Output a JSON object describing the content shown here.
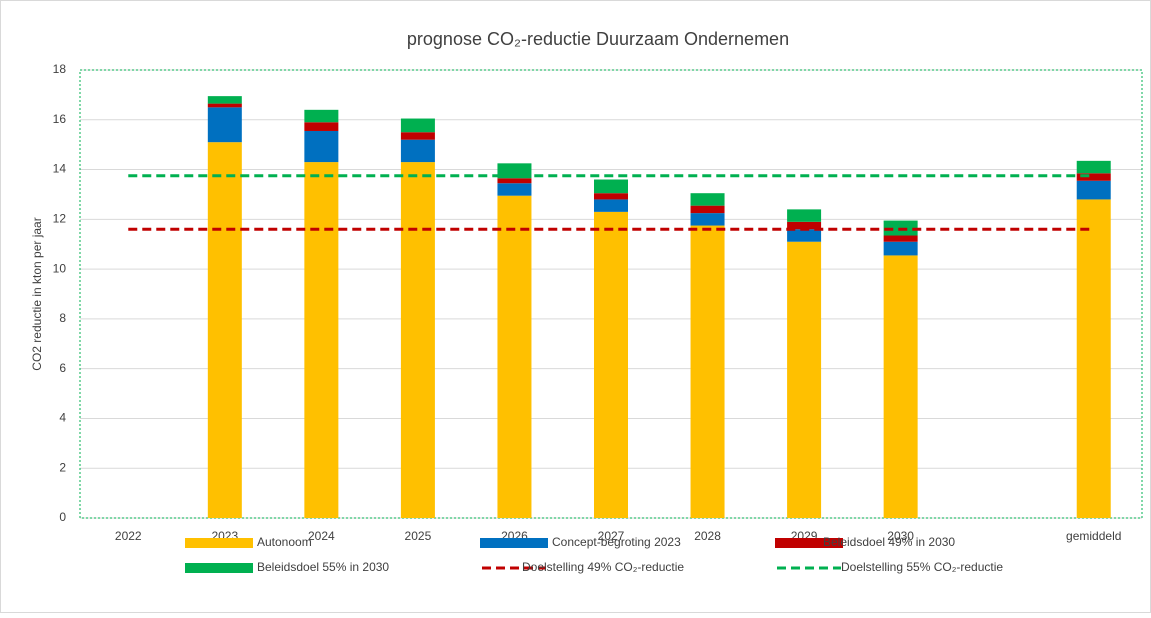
{
  "chart_data": {
    "type": "bar",
    "stacked": true,
    "title": "prognose CO₂-reductie Duurzaam Ondernemen",
    "y_label": "CO2 reductie in kton per jaar",
    "categories": [
      "2022",
      "2023",
      "2024",
      "2025",
      "2026",
      "2027",
      "2028",
      "2029",
      "2030",
      null,
      "gemiddeld"
    ],
    "series": [
      {
        "name": "Autonoom",
        "type": "bar",
        "color": "#ffc000",
        "values": [
          null,
          15.1,
          14.3,
          14.3,
          12.95,
          12.3,
          11.75,
          11.1,
          10.55,
          null,
          12.8
        ]
      },
      {
        "name": "Concept-begroting 2023",
        "type": "bar",
        "color": "#0070c0",
        "values": [
          null,
          1.4,
          1.25,
          0.9,
          0.5,
          0.5,
          0.5,
          0.5,
          0.55,
          null,
          0.75
        ]
      },
      {
        "name": "Beleidsdoel 49% in 2030",
        "type": "bar",
        "color": "#c00000",
        "values": [
          null,
          0.15,
          0.35,
          0.3,
          0.2,
          0.25,
          0.3,
          0.3,
          0.25,
          null,
          0.3
        ]
      },
      {
        "name": "Beleidsdoel 55% in 2030",
        "type": "bar",
        "color": "#00b050",
        "values": [
          null,
          0.3,
          0.5,
          0.55,
          0.6,
          0.55,
          0.5,
          0.5,
          0.6,
          null,
          0.5
        ]
      },
      {
        "name": "Doelstelling 49% CO₂-reductie",
        "type": "line",
        "dashed": true,
        "color": "#c00000",
        "values": [
          11.6,
          11.6,
          11.6,
          11.6,
          11.6,
          11.6,
          11.6,
          11.6,
          11.6,
          11.6,
          11.6
        ]
      },
      {
        "name": "Doelstelling 55% CO₂-reductie",
        "type": "line",
        "dashed": true,
        "color": "#00b050",
        "values": [
          13.75,
          13.75,
          13.75,
          13.75,
          13.75,
          13.75,
          13.75,
          13.75,
          13.75,
          13.75,
          13.75
        ]
      }
    ],
    "ylim": [
      0,
      18
    ],
    "yticks": [
      0,
      2,
      4,
      6,
      8,
      10,
      12,
      14,
      16,
      18
    ],
    "grid": true,
    "legend": "bottom"
  }
}
